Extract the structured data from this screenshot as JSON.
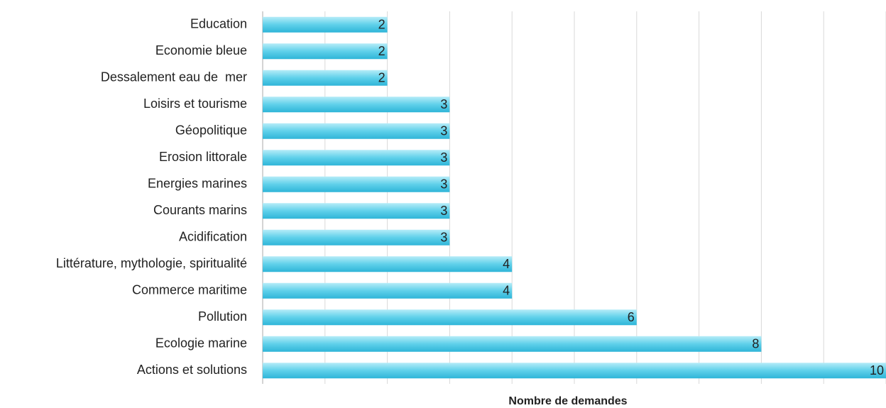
{
  "chart_data": {
    "type": "bar",
    "orientation": "horizontal",
    "x_label": "Nombre de demandes",
    "categories": [
      "Education",
      "Economie bleue",
      "Dessalement eau de  mer",
      "Loisirs et tourisme",
      "Géopolitique",
      "Erosion littorale",
      "Energies marines",
      "Courants marins",
      "Acidification",
      "Littérature, mythologie, spiritualité",
      "Commerce maritime",
      "Pollution",
      "Ecologie marine",
      "Actions et solutions"
    ],
    "values": [
      2,
      2,
      2,
      3,
      3,
      3,
      3,
      3,
      3,
      4,
      4,
      6,
      8,
      10
    ],
    "color": "#4cc8e6",
    "xlim": [
      0,
      10
    ],
    "xticks": [
      0,
      1,
      2,
      3,
      4,
      5,
      6,
      7,
      8,
      9,
      10
    ],
    "grid": true
  }
}
